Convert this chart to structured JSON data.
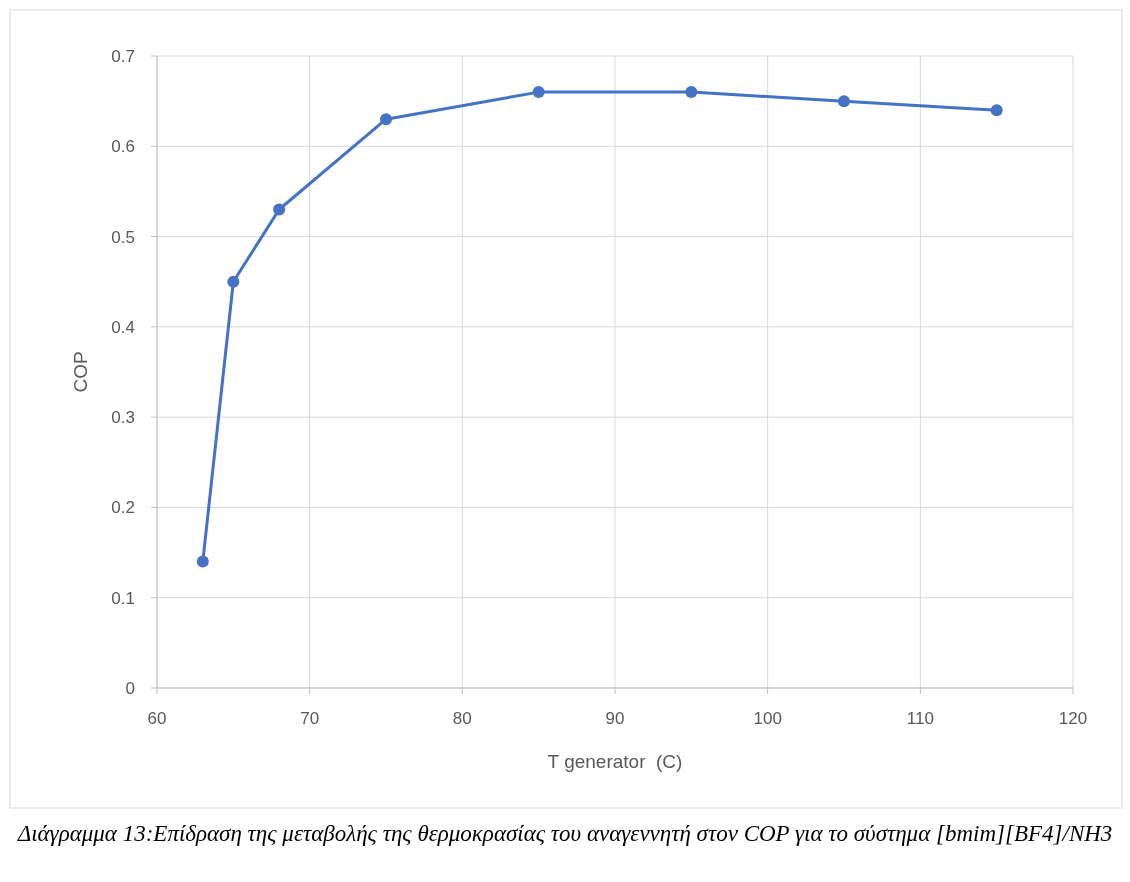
{
  "chart_data": {
    "type": "line",
    "xlabel": "T generator  (C)",
    "ylabel": "COP",
    "x": [
      63,
      65,
      68,
      75,
      85,
      95,
      105,
      115
    ],
    "series": [
      {
        "color": "#4472c4",
        "values": [
          0.14,
          0.45,
          0.53,
          0.63,
          0.66,
          0.66,
          0.65,
          0.64
        ]
      }
    ],
    "xlim": [
      60,
      120
    ],
    "xticks": [
      60,
      70,
      80,
      90,
      100,
      110,
      120
    ],
    "ylim": [
      0,
      0.7
    ],
    "yticks": [
      0,
      0.1,
      0.2,
      0.3,
      0.4,
      0.5,
      0.6,
      0.7
    ],
    "grid": true,
    "marker": "circle",
    "line_style": "solid",
    "annotations": [
      "Διάγραμμα 13:Επίδραση της μεταβολής της θερμοκρασίας του αναγεννητή στον COP για το σύστημα [bmim][BF4]/NH3"
    ]
  }
}
